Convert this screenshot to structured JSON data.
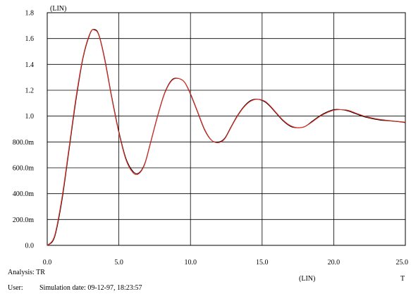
{
  "chart_data": {
    "type": "line",
    "title": "",
    "xlabel": "T",
    "ylabel": "",
    "x_scale_label": "(LIN)",
    "y_scale_label": "(LIN)",
    "xlim": [
      0,
      25
    ],
    "ylim": [
      0,
      1.8
    ],
    "grid": true,
    "x_ticks": [
      {
        "value": 0,
        "label": "0.0"
      },
      {
        "value": 5,
        "label": "5.0"
      },
      {
        "value": 10,
        "label": "10.0"
      },
      {
        "value": 15,
        "label": "15.0"
      },
      {
        "value": 20,
        "label": "20.0"
      },
      {
        "value": 25,
        "label": "25.0"
      }
    ],
    "y_ticks": [
      {
        "value": 0,
        "label": "0.0"
      },
      {
        "value": 0.2,
        "label": "200.0m"
      },
      {
        "value": 0.4,
        "label": "400.0m"
      },
      {
        "value": 0.6,
        "label": "600.0m"
      },
      {
        "value": 0.8,
        "label": "800.0m"
      },
      {
        "value": 1.0,
        "label": "1.0"
      },
      {
        "value": 1.2,
        "label": "1.2"
      },
      {
        "value": 1.4,
        "label": "1.4"
      },
      {
        "value": 1.6,
        "label": "1.6"
      },
      {
        "value": 1.8,
        "label": "1.8"
      }
    ],
    "series": [
      {
        "color": "#000000",
        "x": [
          0,
          0.5,
          1.0,
          1.5,
          2.0,
          2.5,
          3.0,
          3.3,
          3.6,
          4.0,
          4.5,
          5.0,
          5.5,
          6.0,
          6.4,
          6.8,
          7.2,
          7.7,
          8.2,
          8.7,
          9.2,
          9.6,
          10.0,
          10.5,
          11.0,
          11.5,
          12.0,
          12.4,
          12.8,
          13.2,
          13.7,
          14.2,
          14.7,
          15.2,
          15.6,
          16.0,
          16.5,
          17.0,
          17.5,
          18.0,
          18.5,
          19.0,
          19.5,
          20.0,
          20.5,
          21.0,
          21.5,
          22.0,
          22.3,
          22.7,
          23.2,
          23.7,
          24.2,
          24.7,
          25.0
        ],
        "y": [
          0.0,
          0.06,
          0.33,
          0.72,
          1.12,
          1.45,
          1.64,
          1.67,
          1.63,
          1.45,
          1.15,
          0.88,
          0.67,
          0.57,
          0.56,
          0.63,
          0.79,
          1.0,
          1.18,
          1.28,
          1.29,
          1.26,
          1.17,
          1.03,
          0.89,
          0.81,
          0.8,
          0.83,
          0.91,
          0.99,
          1.07,
          1.12,
          1.13,
          1.11,
          1.07,
          1.02,
          0.96,
          0.92,
          0.91,
          0.92,
          0.96,
          1.0,
          1.03,
          1.05,
          1.05,
          1.04,
          1.02,
          1.0,
          0.99,
          0.98,
          0.97,
          0.965,
          0.96,
          0.955,
          0.95
        ]
      },
      {
        "color": "#e8322a",
        "x": [
          0,
          0.5,
          1.0,
          1.5,
          2.0,
          2.5,
          3.0,
          3.3,
          3.6,
          4.0,
          4.5,
          5.0,
          5.5,
          6.0,
          6.4,
          6.8,
          7.2,
          7.7,
          8.2,
          8.7,
          9.2,
          9.6,
          10.0,
          10.5,
          11.0,
          11.5,
          12.0,
          12.4,
          12.8,
          13.2,
          13.7,
          14.2,
          14.7,
          15.2,
          15.6,
          16.0,
          16.5,
          17.0,
          17.5,
          18.0,
          18.5,
          19.0,
          19.5,
          20.0,
          20.5,
          21.0,
          21.5,
          22.0,
          22.3,
          22.7,
          23.2,
          23.7,
          24.2,
          24.7,
          25.0
        ],
        "y": [
          0.0,
          0.07,
          0.35,
          0.74,
          1.14,
          1.46,
          1.645,
          1.665,
          1.625,
          1.44,
          1.14,
          0.87,
          0.66,
          0.56,
          0.555,
          0.625,
          0.785,
          0.995,
          1.175,
          1.275,
          1.29,
          1.26,
          1.175,
          1.035,
          0.895,
          0.81,
          0.795,
          0.825,
          0.905,
          0.985,
          1.065,
          1.115,
          1.13,
          1.115,
          1.075,
          1.025,
          0.965,
          0.925,
          0.91,
          0.92,
          0.955,
          0.995,
          1.025,
          1.045,
          1.05,
          1.045,
          1.025,
          1.005,
          0.995,
          0.985,
          0.975,
          0.968,
          0.962,
          0.957,
          0.953
        ]
      }
    ]
  },
  "footer": {
    "analysis_line": "Analysis: TR",
    "user_label": "User:",
    "simulation_date": "Simulation date: 09-12-97, 18:23:57"
  }
}
